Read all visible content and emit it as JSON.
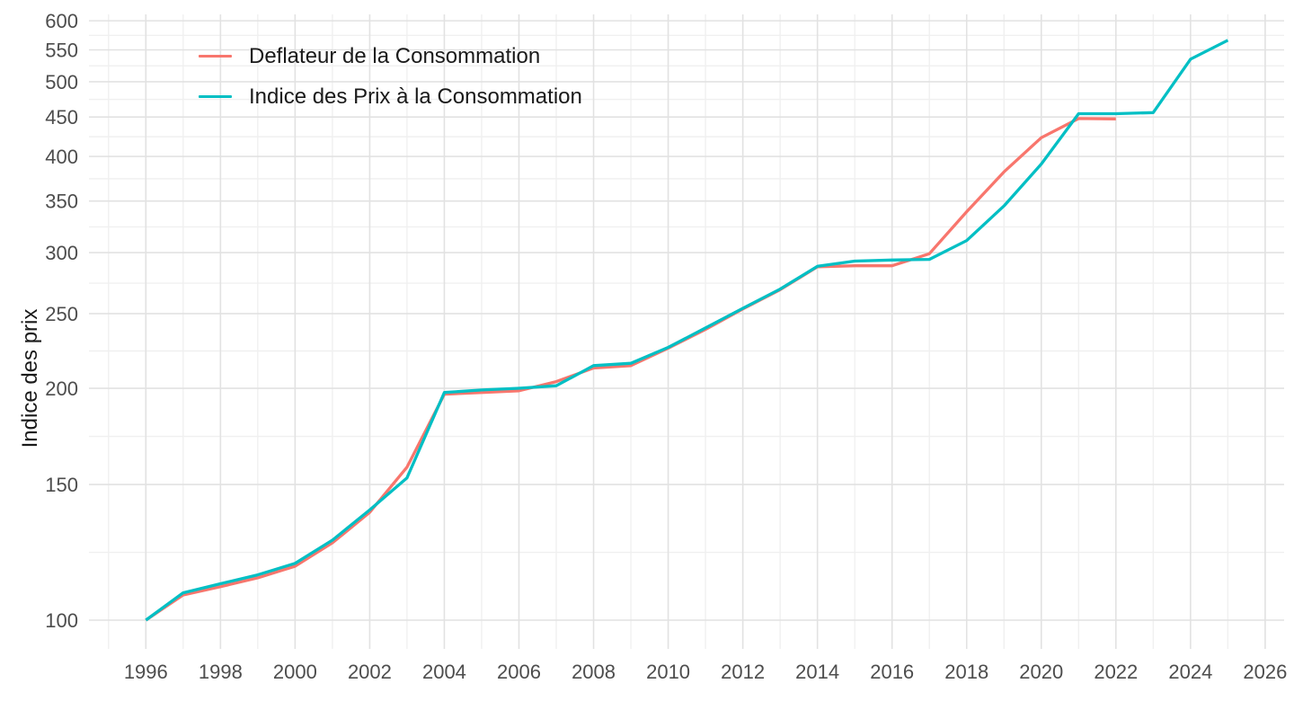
{
  "chart_data": {
    "type": "line",
    "title": "",
    "xlabel": "",
    "ylabel": "Indice des prix",
    "y_scale": "log",
    "grid": true,
    "legend_position": "inside-top-left",
    "xlim": [
      1994.5,
      2026.5
    ],
    "ylim": [
      92,
      617
    ],
    "x_major_ticks": [
      1996,
      1998,
      2000,
      2002,
      2004,
      2006,
      2008,
      2010,
      2012,
      2014,
      2016,
      2018,
      2020,
      2022,
      2024,
      2026
    ],
    "x_minor_ticks": [
      1995,
      1997,
      1999,
      2001,
      2003,
      2005,
      2007,
      2009,
      2011,
      2013,
      2015,
      2017,
      2019,
      2021,
      2023,
      2025
    ],
    "y_major_ticks": [
      100,
      150,
      200,
      250,
      300,
      350,
      400,
      450,
      500,
      550,
      600
    ],
    "axis_text_color": "#4d4d4d",
    "series": [
      {
        "name": "Deflateur de la Consommation",
        "color": "#F8766D",
        "x": [
          1996,
          1997,
          1998,
          1999,
          2000,
          2001,
          2002,
          2003,
          2004,
          2005,
          2006,
          2007,
          2008,
          2009,
          2010,
          2011,
          2012,
          2013,
          2014,
          2015,
          2016,
          2017,
          2018,
          2019,
          2020,
          2021,
          2022
        ],
        "values": [
          100,
          107.8,
          110.5,
          113.5,
          117.5,
          126,
          138,
          158,
          196.5,
          197.5,
          198.5,
          204,
          212.5,
          214,
          225.5,
          238.5,
          253.5,
          268.5,
          287.5,
          288.5,
          288.5,
          299,
          339,
          382,
          423,
          448,
          447.5
        ]
      },
      {
        "name": "Indice des Prix à la Consommation",
        "color": "#00BFC4",
        "x": [
          1996,
          1997,
          1998,
          1999,
          2000,
          2001,
          2002,
          2003,
          2004,
          2005,
          2006,
          2007,
          2008,
          2009,
          2010,
          2011,
          2012,
          2013,
          2014,
          2015,
          2016,
          2017,
          2018,
          2019,
          2020,
          2021,
          2022,
          2023,
          2024,
          2025
        ],
        "values": [
          100,
          108.5,
          111.5,
          114.5,
          118.5,
          127,
          139,
          153,
          197.5,
          199,
          200,
          201.5,
          214,
          215.5,
          226,
          239.5,
          254,
          269,
          288,
          292.5,
          293.5,
          294,
          311,
          345,
          391,
          454.5,
          454.5,
          456,
          535,
          566
        ]
      }
    ]
  }
}
